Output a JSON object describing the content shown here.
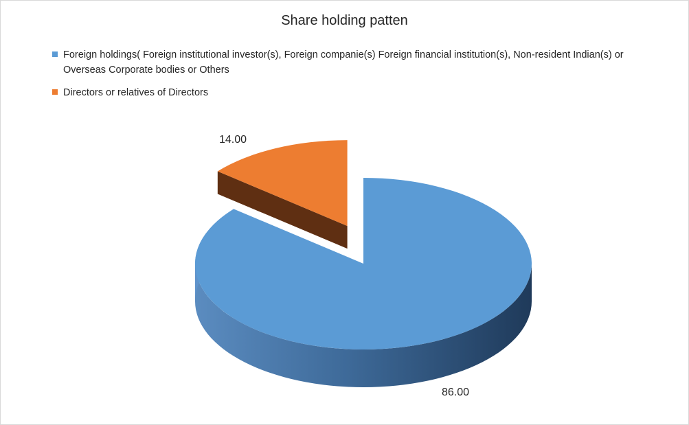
{
  "chart_data": {
    "type": "pie",
    "title": "Share holding patten",
    "categories": [
      "Foreign holdings( Foreign institutional investor(s), Foreign companie(s) Foreign financial institution(s),  Non-resident Indian(s) or Overseas Corporate bodies or Others",
      "Directors or relatives of Directors"
    ],
    "values": [
      86.0,
      14.0
    ],
    "value_labels": [
      "86.00",
      "14.00"
    ],
    "colors": [
      "#5b9bd5",
      "#ed7d31"
    ],
    "legend_position": "top",
    "style": "3d-exploded"
  }
}
